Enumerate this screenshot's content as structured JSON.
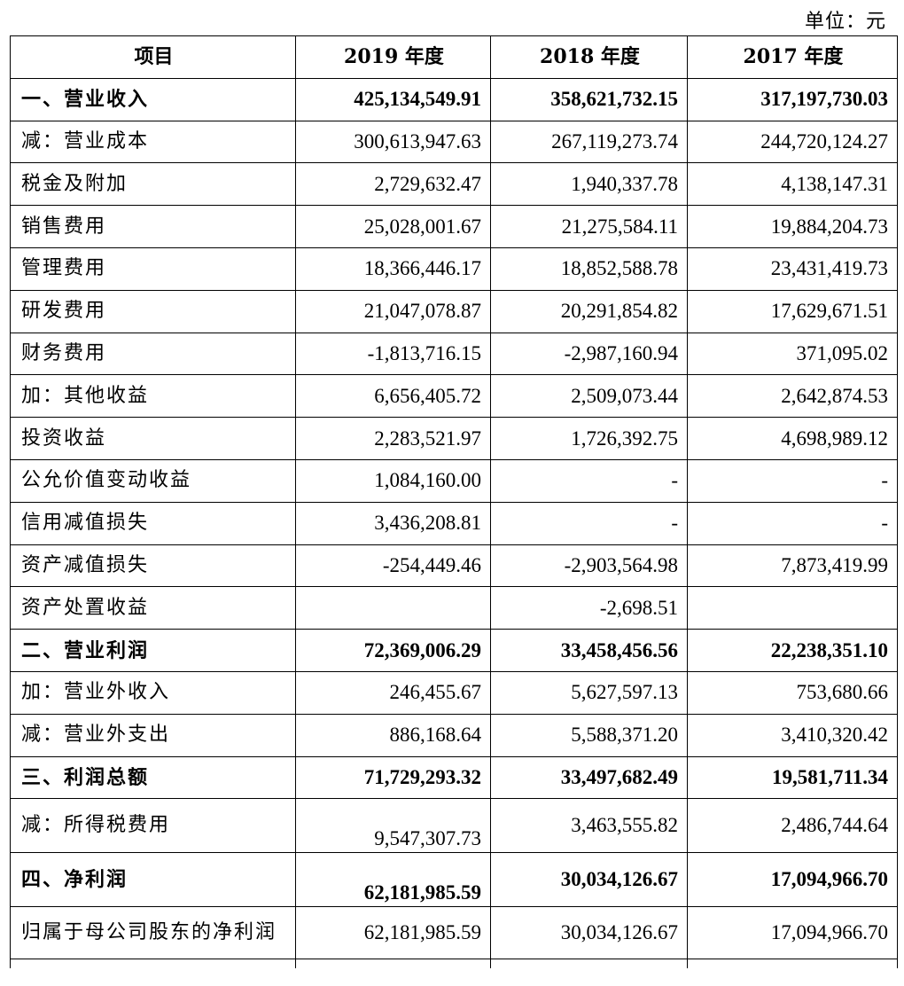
{
  "unit_label": "单位：元",
  "header": [
    "项目",
    "2019 年度",
    "2018 年度",
    "2017 年度"
  ],
  "rows": [
    {
      "label": "一、营业收入",
      "v2019": "425,134,549.91",
      "v2018": "358,621,732.15",
      "v2017": "317,197,730.03"
    },
    {
      "label": "减：营业成本",
      "v2019": "300,613,947.63",
      "v2018": "267,119,273.74",
      "v2017": "244,720,124.27"
    },
    {
      "label": "税金及附加",
      "v2019": "2,729,632.47",
      "v2018": "1,940,337.78",
      "v2017": "4,138,147.31"
    },
    {
      "label": "销售费用",
      "v2019": "25,028,001.67",
      "v2018": "21,275,584.11",
      "v2017": "19,884,204.73"
    },
    {
      "label": "管理费用",
      "v2019": "18,366,446.17",
      "v2018": "18,852,588.78",
      "v2017": "23,431,419.73"
    },
    {
      "label": "研发费用",
      "v2019": "21,047,078.87",
      "v2018": "20,291,854.82",
      "v2017": "17,629,671.51"
    },
    {
      "label": "财务费用",
      "v2019": "-1,813,716.15",
      "v2018": "-2,987,160.94",
      "v2017": "371,095.02"
    },
    {
      "label": "加：其他收益",
      "v2019": "6,656,405.72",
      "v2018": "2,509,073.44",
      "v2017": "2,642,874.53"
    },
    {
      "label": "投资收益",
      "v2019": "2,283,521.97",
      "v2018": "1,726,392.75",
      "v2017": "4,698,989.12"
    },
    {
      "label": "公允价值变动收益",
      "v2019": "1,084,160.00",
      "v2018": "-",
      "v2017": "-"
    },
    {
      "label": "信用减值损失",
      "v2019": "3,436,208.81",
      "v2018": "-",
      "v2017": "-"
    },
    {
      "label": "资产减值损失",
      "v2019": "-254,449.46",
      "v2018": "-2,903,564.98",
      "v2017": "7,873,419.99"
    },
    {
      "label": "资产处置收益",
      "v2019": "",
      "v2018": "-2,698.51",
      "v2017": ""
    },
    {
      "label": "二、营业利润",
      "v2019": "72,369,006.29",
      "v2018": "33,458,456.56",
      "v2017": "22,238,351.10"
    },
    {
      "label": "加：营业外收入",
      "v2019": "246,455.67",
      "v2018": "5,627,597.13",
      "v2017": "753,680.66"
    },
    {
      "label": "减：营业外支出",
      "v2019": "886,168.64",
      "v2018": "5,588,371.20",
      "v2017": "3,410,320.42"
    },
    {
      "label": "三、利润总额",
      "v2019": "71,729,293.32",
      "v2018": "33,497,682.49",
      "v2017": "19,581,711.34"
    },
    {
      "label": "减：所得税费用",
      "v2019": "9,547,307.73",
      "v2018": "3,463,555.82",
      "v2017": "2,486,744.64"
    },
    {
      "label": "四、净利润",
      "v2019": "62,181,985.59",
      "v2018": "30,034,126.67",
      "v2017": "17,094,966.70"
    },
    {
      "label": "归属于母公司股东的净利润",
      "v2019": "62,181,985.59",
      "v2018": "30,034,126.67",
      "v2017": "17,094,966.70"
    }
  ]
}
